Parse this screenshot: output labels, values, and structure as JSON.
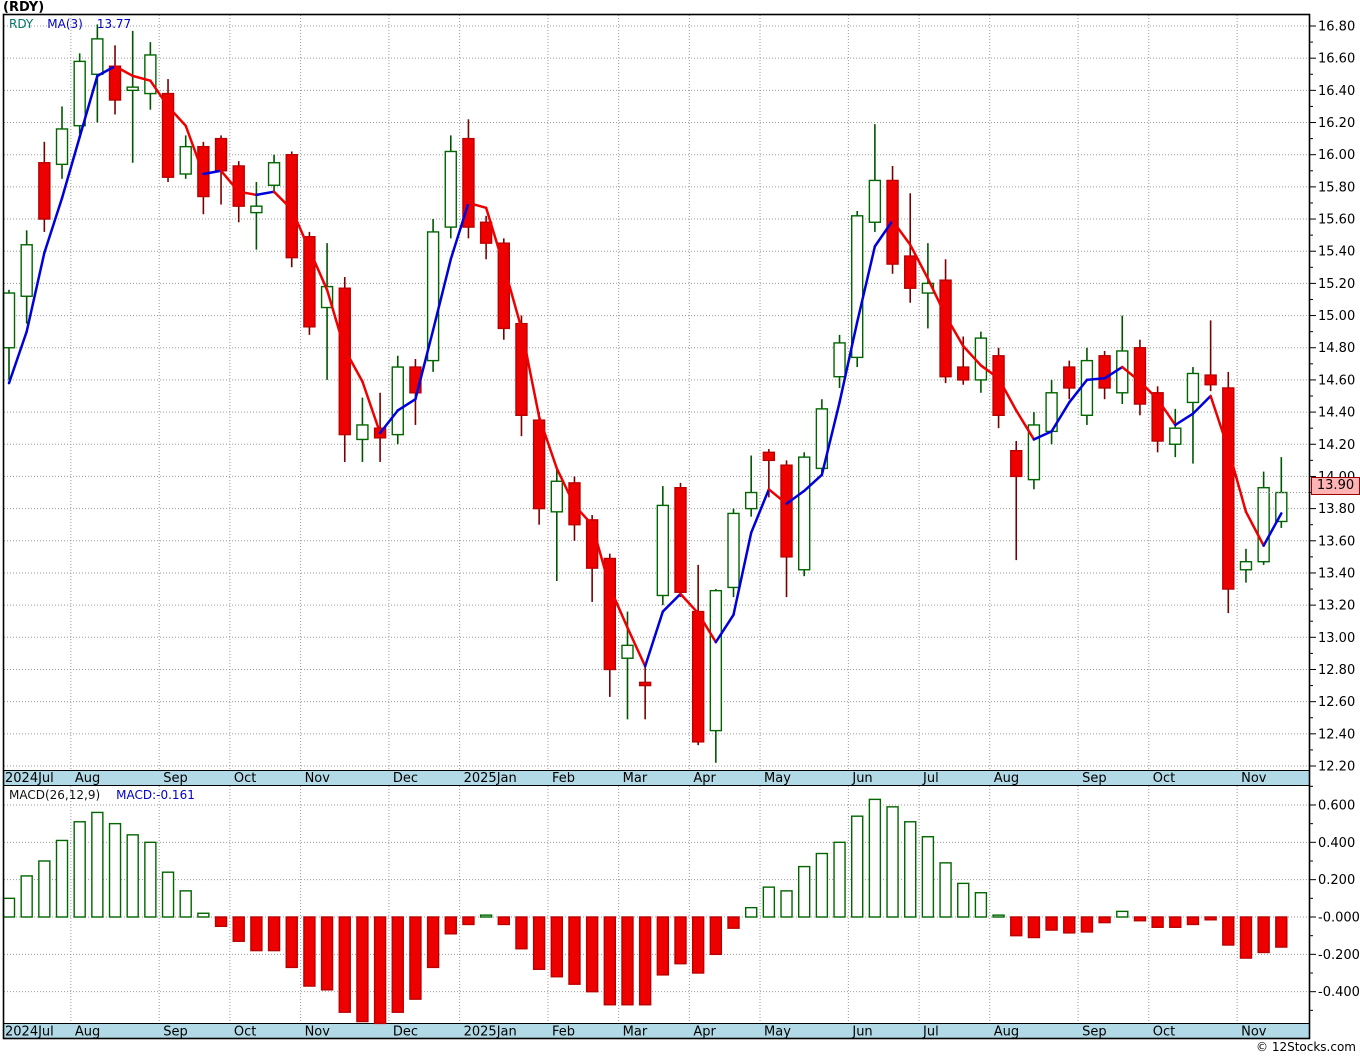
{
  "header": {
    "title": "(RDY)"
  },
  "price_legend": {
    "symbol": "RDY",
    "ma_label": "MA(3)",
    "ma_value": "13.77"
  },
  "macd_legend": {
    "label": "MACD(26,12,9)",
    "value": "MACD:-0.161"
  },
  "last_price_marker": "13.90",
  "footer": {
    "copyright": "© 12Stocks.com"
  },
  "colors": {
    "up_stroke": "#006600",
    "up_fill": "#ffffff",
    "up_wick": "#005500",
    "down_fill": "#ee0000",
    "down_stroke": "#bb0000",
    "down_wick": "#7a0000",
    "ma_up": "#0000dd",
    "ma_down": "#ee0000",
    "grid": "#9a9a9a",
    "frame": "#000000",
    "strip_bg": "#b2d9e6",
    "strip_text": "#000000",
    "axis_text": "#000000",
    "marker_bg": "#ffb3b3",
    "marker_border": "#990000"
  },
  "chart_data": {
    "type": "candlestick+macd",
    "title": "(RDY) weekly candlestick chart with MA(3) and MACD(26,12,9)",
    "price_axis": {
      "min": 12.2,
      "max": 16.8,
      "label_step": 0.2,
      "tick_step": 0.1
    },
    "macd_axis": {
      "min": -0.57,
      "max": 0.7,
      "label_step": 0.2,
      "tick_step": 0.1,
      "labels": [
        "0.600",
        "0.400",
        "0.200",
        "0.000",
        "-0.200",
        "-0.400"
      ]
    },
    "months": [
      {
        "label": "2024Jul",
        "start": 0
      },
      {
        "label": "Aug",
        "start": 4
      },
      {
        "label": "Sep",
        "start": 9
      },
      {
        "label": "Oct",
        "start": 13
      },
      {
        "label": "Nov",
        "start": 17
      },
      {
        "label": "Dec",
        "start": 22
      },
      {
        "label": "2025Jan",
        "start": 26
      },
      {
        "label": "Feb",
        "start": 31
      },
      {
        "label": "Mar",
        "start": 35
      },
      {
        "label": "Apr",
        "start": 39
      },
      {
        "label": "May",
        "start": 43
      },
      {
        "label": "Jun",
        "start": 48
      },
      {
        "label": "Jul",
        "start": 52
      },
      {
        "label": "Aug",
        "start": 56
      },
      {
        "label": "Sep",
        "start": 61
      },
      {
        "label": "Oct",
        "start": 65
      },
      {
        "label": "Nov",
        "start": 70
      }
    ],
    "candles": [
      [
        14.8,
        15.16,
        14.6,
        15.14
      ],
      [
        15.12,
        15.53,
        14.95,
        15.44
      ],
      [
        15.95,
        16.08,
        15.52,
        15.6
      ],
      [
        15.94,
        16.3,
        15.85,
        16.16
      ],
      [
        16.18,
        16.63,
        16.13,
        16.58
      ],
      [
        16.5,
        16.81,
        16.2,
        16.72
      ],
      [
        16.55,
        16.68,
        16.25,
        16.34
      ],
      [
        16.4,
        16.77,
        15.95,
        16.42
      ],
      [
        16.38,
        16.7,
        16.28,
        16.62
      ],
      [
        16.38,
        16.47,
        15.83,
        15.86
      ],
      [
        15.88,
        16.12,
        15.85,
        16.05
      ],
      [
        16.05,
        16.08,
        15.63,
        15.74
      ],
      [
        16.1,
        16.12,
        15.69,
        15.9
      ],
      [
        15.93,
        15.96,
        15.58,
        15.68
      ],
      [
        15.64,
        15.83,
        15.41,
        15.68
      ],
      [
        15.81,
        16.0,
        15.76,
        15.95
      ],
      [
        16.0,
        16.02,
        15.3,
        15.36
      ],
      [
        15.49,
        15.52,
        14.88,
        14.93
      ],
      [
        15.05,
        15.45,
        14.6,
        15.18
      ],
      [
        15.17,
        15.24,
        14.09,
        14.26
      ],
      [
        14.23,
        14.49,
        14.09,
        14.32
      ],
      [
        14.3,
        14.52,
        14.09,
        14.24
      ],
      [
        14.26,
        14.75,
        14.2,
        14.68
      ],
      [
        14.68,
        14.73,
        14.32,
        14.52
      ],
      [
        14.72,
        15.6,
        14.65,
        15.52
      ],
      [
        15.55,
        16.12,
        15.48,
        16.02
      ],
      [
        16.1,
        16.22,
        15.48,
        15.55
      ],
      [
        15.58,
        15.62,
        15.35,
        15.45
      ],
      [
        15.45,
        15.48,
        14.85,
        14.92
      ],
      [
        14.95,
        15.0,
        14.25,
        14.38
      ],
      [
        14.35,
        14.4,
        13.7,
        13.8
      ],
      [
        13.78,
        14.05,
        13.35,
        13.97
      ],
      [
        13.96,
        14.0,
        13.6,
        13.7
      ],
      [
        13.73,
        13.76,
        13.22,
        13.43
      ],
      [
        13.49,
        13.52,
        12.63,
        12.8
      ],
      [
        12.87,
        13.16,
        12.49,
        12.95
      ],
      [
        12.72,
        12.83,
        12.49,
        12.7
      ],
      [
        13.26,
        13.94,
        13.2,
        13.82
      ],
      [
        13.93,
        13.96,
        13.25,
        13.28
      ],
      [
        13.16,
        13.45,
        12.33,
        12.35
      ],
      [
        12.42,
        13.3,
        12.22,
        13.29
      ],
      [
        13.31,
        13.8,
        13.25,
        13.77
      ],
      [
        13.8,
        14.13,
        13.75,
        13.9
      ],
      [
        14.15,
        14.17,
        13.87,
        14.1
      ],
      [
        14.07,
        14.1,
        13.25,
        13.5
      ],
      [
        13.42,
        14.15,
        13.38,
        14.12
      ],
      [
        14.05,
        14.48,
        14.0,
        14.42
      ],
      [
        14.62,
        14.88,
        14.55,
        14.83
      ],
      [
        14.74,
        15.65,
        14.68,
        15.62
      ],
      [
        15.58,
        16.19,
        15.52,
        15.84
      ],
      [
        15.84,
        15.93,
        15.26,
        15.32
      ],
      [
        15.37,
        15.76,
        15.08,
        15.17
      ],
      [
        15.14,
        15.45,
        14.92,
        15.2
      ],
      [
        15.22,
        15.35,
        14.58,
        14.62
      ],
      [
        14.68,
        14.87,
        14.57,
        14.6
      ],
      [
        14.6,
        14.9,
        14.52,
        14.86
      ],
      [
        14.75,
        14.8,
        14.3,
        14.38
      ],
      [
        14.16,
        14.22,
        13.48,
        14.0
      ],
      [
        13.98,
        14.4,
        13.92,
        14.32
      ],
      [
        14.28,
        14.6,
        14.2,
        14.52
      ],
      [
        14.68,
        14.72,
        14.48,
        14.55
      ],
      [
        14.38,
        14.8,
        14.32,
        14.72
      ],
      [
        14.75,
        14.78,
        14.48,
        14.55
      ],
      [
        14.52,
        15.0,
        14.45,
        14.78
      ],
      [
        14.8,
        14.85,
        14.38,
        14.45
      ],
      [
        14.52,
        14.56,
        14.15,
        14.22
      ],
      [
        14.2,
        14.42,
        14.12,
        14.3
      ],
      [
        14.46,
        14.68,
        14.08,
        14.64
      ],
      [
        14.63,
        14.97,
        14.53,
        14.57
      ],
      [
        14.55,
        14.65,
        13.15,
        13.3
      ],
      [
        13.42,
        13.55,
        13.34,
        13.47
      ],
      [
        13.47,
        14.03,
        13.45,
        13.93
      ],
      [
        13.72,
        14.12,
        13.68,
        13.9
      ]
    ],
    "ma3": [
      14.58,
      14.9,
      15.39,
      15.73,
      16.11,
      16.49,
      16.55,
      16.49,
      16.46,
      16.3,
      16.18,
      15.88,
      15.9,
      15.77,
      15.75,
      15.77,
      15.66,
      15.41,
      15.16,
      14.79,
      14.59,
      14.27,
      14.41,
      14.48,
      14.91,
      15.35,
      15.7,
      15.67,
      15.31,
      14.92,
      14.37,
      14.05,
      13.82,
      13.7,
      13.31,
      13.06,
      12.82,
      13.16,
      13.27,
      13.15,
      12.97,
      13.14,
      13.65,
      13.92,
      13.83,
      13.91,
      14.01,
      14.46,
      14.96,
      15.43,
      15.59,
      15.44,
      15.23,
      15.0,
      14.81,
      14.69,
      14.61,
      14.41,
      14.23,
      14.28,
      14.46,
      14.6,
      14.61,
      14.68,
      14.59,
      14.48,
      14.32,
      14.39,
      14.5,
      14.17,
      13.78,
      13.57,
      13.77
    ],
    "macd_hist": [
      0.1,
      0.22,
      0.3,
      0.41,
      0.51,
      0.56,
      0.5,
      0.44,
      0.4,
      0.24,
      0.14,
      0.02,
      -0.05,
      -0.13,
      -0.18,
      -0.18,
      -0.27,
      -0.37,
      -0.39,
      -0.51,
      -0.56,
      -0.57,
      -0.51,
      -0.44,
      -0.27,
      -0.09,
      -0.04,
      0.01,
      -0.04,
      -0.17,
      -0.28,
      -0.32,
      -0.36,
      -0.4,
      -0.47,
      -0.47,
      -0.47,
      -0.31,
      -0.25,
      -0.3,
      -0.2,
      -0.06,
      0.05,
      0.16,
      0.14,
      0.27,
      0.34,
      0.4,
      0.54,
      0.63,
      0.59,
      0.51,
      0.43,
      0.29,
      0.18,
      0.13,
      0.01,
      -0.1,
      -0.11,
      -0.07,
      -0.085,
      -0.08,
      -0.03,
      0.03,
      -0.02,
      -0.055,
      -0.055,
      -0.04,
      -0.015,
      -0.15,
      -0.22,
      -0.19,
      -0.161
    ]
  }
}
